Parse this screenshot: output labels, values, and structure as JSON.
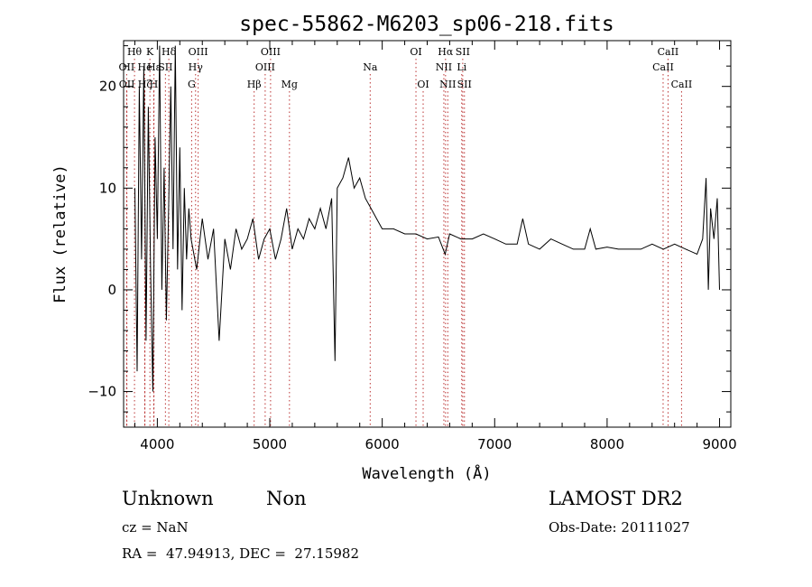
{
  "chart_data": {
    "type": "line",
    "title": "spec-55862-M6203_sp06-218.fits",
    "xlabel": "Wavelength (Å)",
    "ylabel": "Flux (relative)",
    "xlim": [
      3700,
      9100
    ],
    "ylim": [
      -13.5,
      24.5
    ],
    "xticks": [
      "4000",
      "5000",
      "6000",
      "7000",
      "8000",
      "9000"
    ],
    "yticks": [
      "−10",
      "0",
      "10",
      "20"
    ],
    "grid": false,
    "line_color": "#000000",
    "line_marker_color": "#bb3333",
    "series": [
      {
        "x": [
          3800,
          3820,
          3840,
          3860,
          3880,
          3900,
          3920,
          3940,
          3960,
          3980,
          4000,
          4020,
          4040,
          4060,
          4080,
          4100,
          4120,
          4140,
          4160,
          4180,
          4200,
          4220,
          4240,
          4260,
          4280,
          4300,
          4350,
          4400,
          4450,
          4500,
          4550,
          4600,
          4650,
          4700,
          4750,
          4800,
          4850,
          4900,
          4950,
          5000,
          5050,
          5100,
          5150,
          5200,
          5250,
          5300,
          5350,
          5400,
          5450,
          5500,
          5550,
          5580,
          5600,
          5650,
          5700,
          5750,
          5800,
          5850,
          5900,
          5950,
          6000,
          6100,
          6200,
          6300,
          6400,
          6500,
          6560,
          6600,
          6700,
          6800,
          6900,
          7000,
          7100,
          7200,
          7250,
          7300,
          7400,
          7500,
          7600,
          7700,
          7800,
          7850,
          7900,
          8000,
          8100,
          8200,
          8300,
          8400,
          8500,
          8600,
          8700,
          8800,
          8850,
          8880,
          8900,
          8920,
          8950,
          8980,
          9000
        ],
        "y": [
          10,
          -8,
          20,
          3,
          22,
          -5,
          18,
          2,
          -10,
          15,
          5,
          24,
          0,
          12,
          -3,
          8,
          20,
          4,
          24,
          2,
          14,
          -2,
          10,
          3,
          8,
          5,
          2,
          7,
          3,
          6,
          -5,
          5,
          2,
          6,
          4,
          5,
          7,
          3,
          5,
          6,
          3,
          5,
          8,
          4,
          6,
          5,
          7,
          6,
          8,
          6,
          9,
          -7,
          10,
          11,
          13,
          10,
          11,
          9,
          8,
          7,
          6,
          6,
          5.5,
          5.5,
          5,
          5.2,
          3.5,
          5.5,
          5,
          5,
          5.5,
          5,
          4.5,
          4.5,
          7,
          4.5,
          4,
          5,
          4.5,
          4,
          4,
          6,
          4,
          4.2,
          4,
          4,
          4,
          4.5,
          4,
          4.5,
          4,
          3.5,
          5,
          11,
          0,
          8,
          5,
          9,
          0
        ]
      }
    ],
    "line_labels": [
      {
        "label": "Hθ",
        "x": 3797,
        "row": 1
      },
      {
        "label": "K",
        "x": 3934,
        "row": 1
      },
      {
        "label": "Hδ",
        "x": 4102,
        "row": 1
      },
      {
        "label": "OIII",
        "x": 4363,
        "row": 1
      },
      {
        "label": "OIII",
        "x": 5007,
        "row": 1
      },
      {
        "label": "OI",
        "x": 6300,
        "row": 1
      },
      {
        "label": "Hα",
        "x": 6563,
        "row": 1
      },
      {
        "label": "SII",
        "x": 6716,
        "row": 1
      },
      {
        "label": "CaII",
        "x": 8542,
        "row": 1
      },
      {
        "label": "OII",
        "x": 3727,
        "row": 2
      },
      {
        "label": "He",
        "x": 3889,
        "row": 2
      },
      {
        "label": "Hε",
        "x": 3970,
        "row": 2
      },
      {
        "label": "SII",
        "x": 4072,
        "row": 2
      },
      {
        "label": "Hγ",
        "x": 4340,
        "row": 2
      },
      {
        "label": "OIII",
        "x": 4959,
        "row": 2
      },
      {
        "label": "Na",
        "x": 5893,
        "row": 2
      },
      {
        "label": "NII",
        "x": 6548,
        "row": 2
      },
      {
        "label": "Li",
        "x": 6707,
        "row": 2
      },
      {
        "label": "CaII",
        "x": 8498,
        "row": 2
      },
      {
        "label": "OII",
        "x": 3729,
        "row": 3
      },
      {
        "label": "Hζ",
        "x": 3889,
        "row": 3
      },
      {
        "label": "H",
        "x": 3968,
        "row": 3
      },
      {
        "label": "G",
        "x": 4305,
        "row": 3
      },
      {
        "label": "Hβ",
        "x": 4861,
        "row": 3
      },
      {
        "label": "Mg",
        "x": 5175,
        "row": 3
      },
      {
        "label": "OI",
        "x": 6364,
        "row": 3
      },
      {
        "label": "NII",
        "x": 6583,
        "row": 3
      },
      {
        "label": "SII",
        "x": 6731,
        "row": 3
      },
      {
        "label": "CaII",
        "x": 8662,
        "row": 3
      }
    ]
  },
  "info": {
    "class": "Unknown",
    "subclass": "Non",
    "survey": "LAMOST DR2",
    "cz": "cz = NaN",
    "obs_date": "Obs-Date: 20111027",
    "coords": "RA =  47.94913, DEC =  27.15982"
  }
}
